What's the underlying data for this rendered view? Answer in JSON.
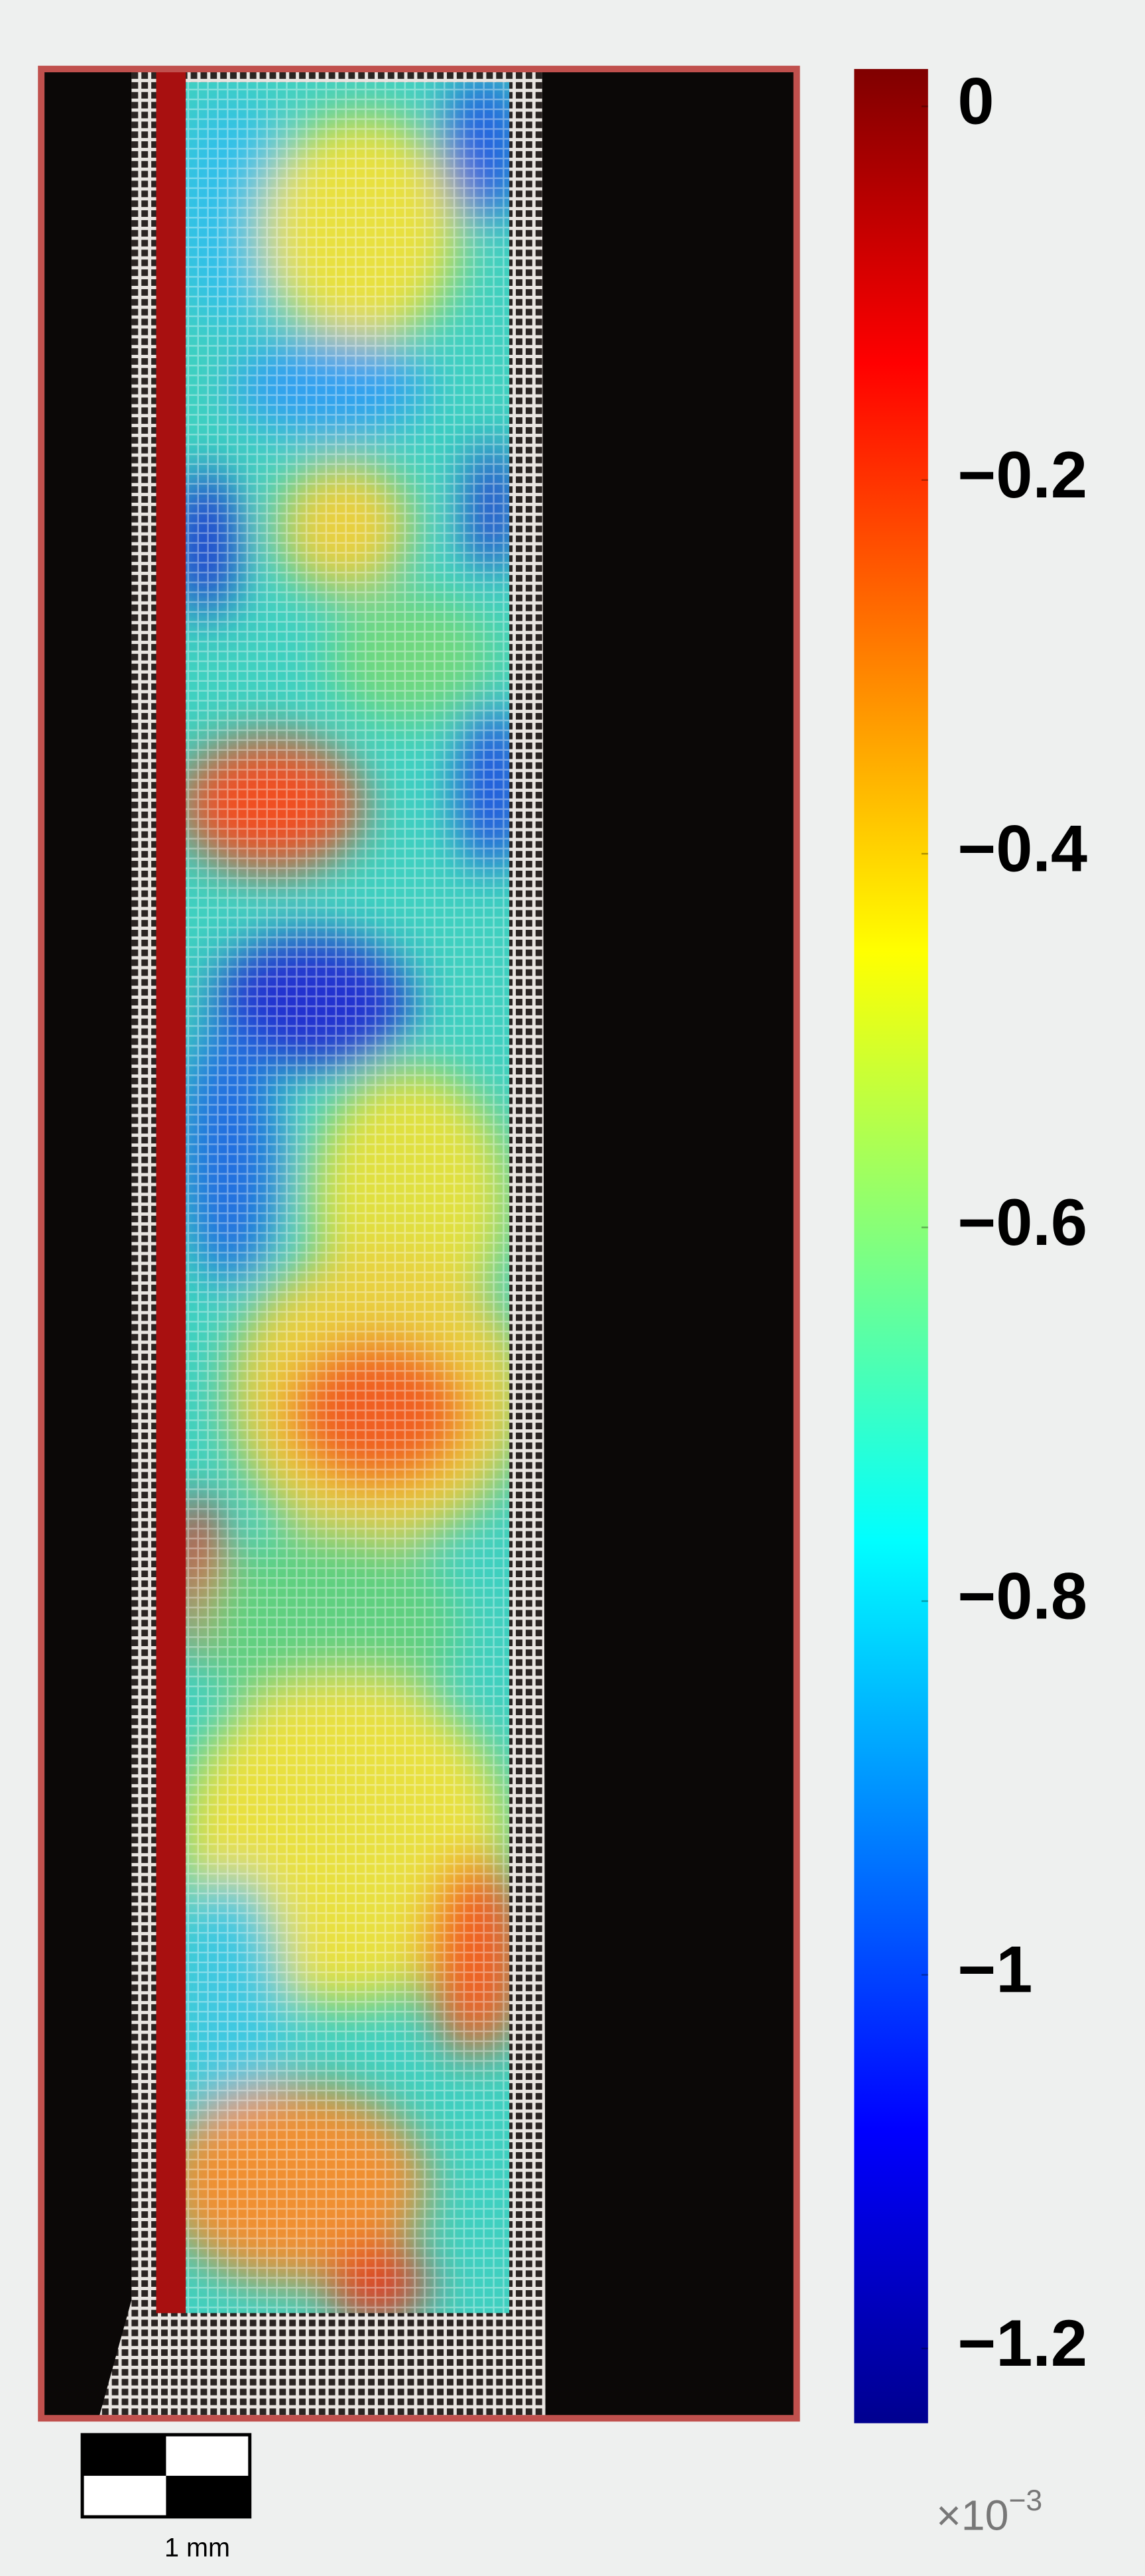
{
  "chart_data": {
    "type": "colorbar",
    "colormap": "jet",
    "clim": [
      -1.24,
      0.02
    ],
    "ticks": [
      0,
      {
        "value": -0.2,
        "label": "−0.2"
      },
      {
        "value": -0.4,
        "label": "−0.4"
      },
      {
        "value": -0.6,
        "label": "−0.6"
      },
      {
        "value": -0.8,
        "label": "−0.8"
      },
      {
        "value": -1,
        "label": "−1"
      },
      {
        "value": -1.2,
        "label": "−1.2"
      }
    ],
    "multiplier": "×10",
    "multiplier_exponent": "−3",
    "scale_bar_label": "1 mm"
  }
}
